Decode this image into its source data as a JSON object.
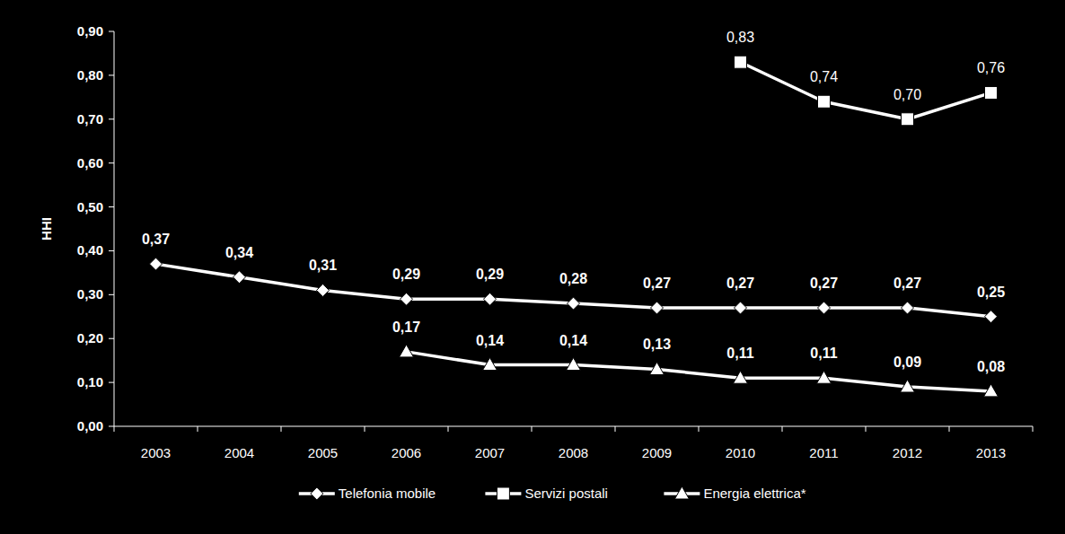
{
  "chart_data": {
    "type": "line",
    "y_label": "HHI",
    "categories": [
      "2003",
      "2004",
      "2005",
      "2006",
      "2007",
      "2008",
      "2009",
      "2010",
      "2011",
      "2012",
      "2013"
    ],
    "ylim": [
      0,
      0.9
    ],
    "yticks": [
      {
        "value": 0,
        "label": "0,00"
      },
      {
        "value": 0.1,
        "label": "0,10"
      },
      {
        "value": 0.2,
        "label": "0,20"
      },
      {
        "value": 0.3,
        "label": "0,30"
      },
      {
        "value": 0.4,
        "label": "0,40"
      },
      {
        "value": 0.5,
        "label": "0,50"
      },
      {
        "value": 0.6,
        "label": "0,60"
      },
      {
        "value": 0.7,
        "label": "0,70"
      },
      {
        "value": 0.8,
        "label": "0,80"
      },
      {
        "value": 0.9,
        "label": "0,90"
      }
    ],
    "grid": false,
    "legend": "bottom",
    "data_labels": true,
    "series": [
      {
        "name": "Telefonia mobile",
        "color": "#ffffff",
        "marker": "diamond",
        "values": [
          0.37,
          0.34,
          0.31,
          0.29,
          0.29,
          0.28,
          0.27,
          0.27,
          0.27,
          0.27,
          0.25
        ],
        "value_labels": [
          "0,37",
          "0,34",
          "0,31",
          "0,29",
          "0,29",
          "0,28",
          "0,27",
          "0,27",
          "0,27",
          "0,27",
          "0,25"
        ]
      },
      {
        "name": "Servizi postali",
        "color": "#ffffff",
        "marker": "square",
        "values": [
          null,
          null,
          null,
          null,
          null,
          null,
          null,
          0.83,
          0.74,
          0.7,
          0.76
        ],
        "value_labels": [
          null,
          null,
          null,
          null,
          null,
          null,
          null,
          "0,83",
          "0,74",
          "0,70",
          "0,76"
        ]
      },
      {
        "name": "Energia elettrica*",
        "color": "#ffffff",
        "marker": "triangle",
        "values": [
          null,
          null,
          null,
          0.17,
          0.14,
          0.14,
          0.13,
          0.11,
          0.11,
          0.09,
          0.08
        ],
        "value_labels": [
          null,
          null,
          null,
          "0,17",
          "0,14",
          "0,14",
          "0,13",
          "0,11",
          "0,11",
          "0,09",
          "0,08"
        ]
      }
    ]
  }
}
